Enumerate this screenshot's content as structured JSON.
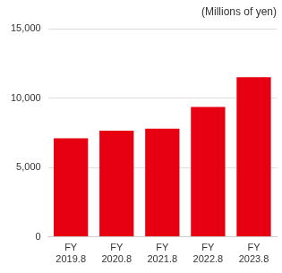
{
  "chart_data": {
    "type": "bar",
    "y_label": "(Millions of yen)",
    "categories": [
      "FY 2019.8",
      "FY 2020.8",
      "FY 2021.8",
      "FY 2022.8",
      "FY 2023.8"
    ],
    "values": [
      7100,
      7650,
      7800,
      9350,
      11500
    ],
    "color": "#e60012",
    "ylim": [
      0,
      15000
    ],
    "yticks": [
      0,
      {
        "value": 5000,
        "label": "5,000"
      },
      {
        "value": 10000,
        "label": "10,000"
      },
      {
        "value": 15000,
        "label": "15,000"
      }
    ],
    "grid": true
  }
}
